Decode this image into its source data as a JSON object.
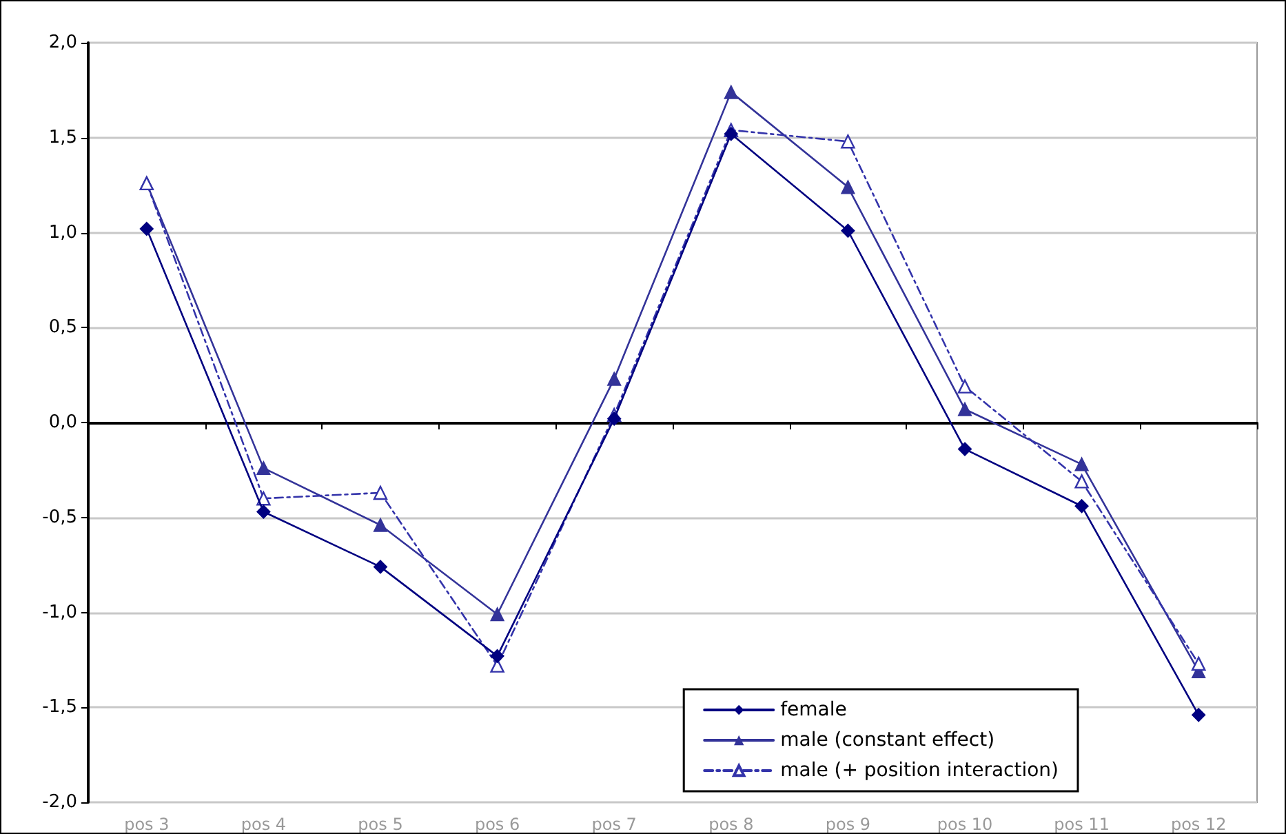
{
  "chart_data": {
    "type": "line",
    "categories": [
      "pos 3",
      "pos 4",
      "pos 5",
      "pos 6",
      "pos 7",
      "pos 8",
      "pos 9",
      "pos 10",
      "pos 11",
      "pos 12"
    ],
    "series": [
      {
        "name": "female",
        "color": "#000080",
        "marker": "diamond",
        "line_style": "solid",
        "values": [
          1.02,
          -0.47,
          -0.76,
          -1.23,
          0.02,
          1.52,
          1.01,
          -0.14,
          -0.44,
          -1.54
        ]
      },
      {
        "name": "male (constant effect)",
        "color": "#333399",
        "marker": "triangle",
        "line_style": "solid",
        "values": [
          1.26,
          -0.24,
          -0.54,
          -1.01,
          0.23,
          1.74,
          1.24,
          0.07,
          -0.22,
          -1.31
        ]
      },
      {
        "name": "male (+ position interaction)",
        "color": "#3333aa",
        "marker": "triangle",
        "line_style": "dashed",
        "values": [
          1.26,
          -0.4,
          -0.37,
          -1.28,
          0.04,
          1.54,
          1.48,
          0.19,
          -0.31,
          -1.27
        ]
      }
    ],
    "ylim": [
      -2,
      2
    ],
    "yticks": [
      {
        "value": -2,
        "label": "-2,0"
      },
      {
        "value": -1.5,
        "label": "-1,5"
      },
      {
        "value": -1,
        "label": "-1,0"
      },
      {
        "value": -0.5,
        "label": "-0,5"
      },
      {
        "value": 0,
        "label": "0,0"
      },
      {
        "value": 0.5,
        "label": "0,5"
      },
      {
        "value": 1,
        "label": "1,0"
      },
      {
        "value": 1.5,
        "label": "1,5"
      },
      {
        "value": 2,
        "label": "2,0"
      }
    ],
    "grid": "y",
    "legend": "bottom right"
  }
}
